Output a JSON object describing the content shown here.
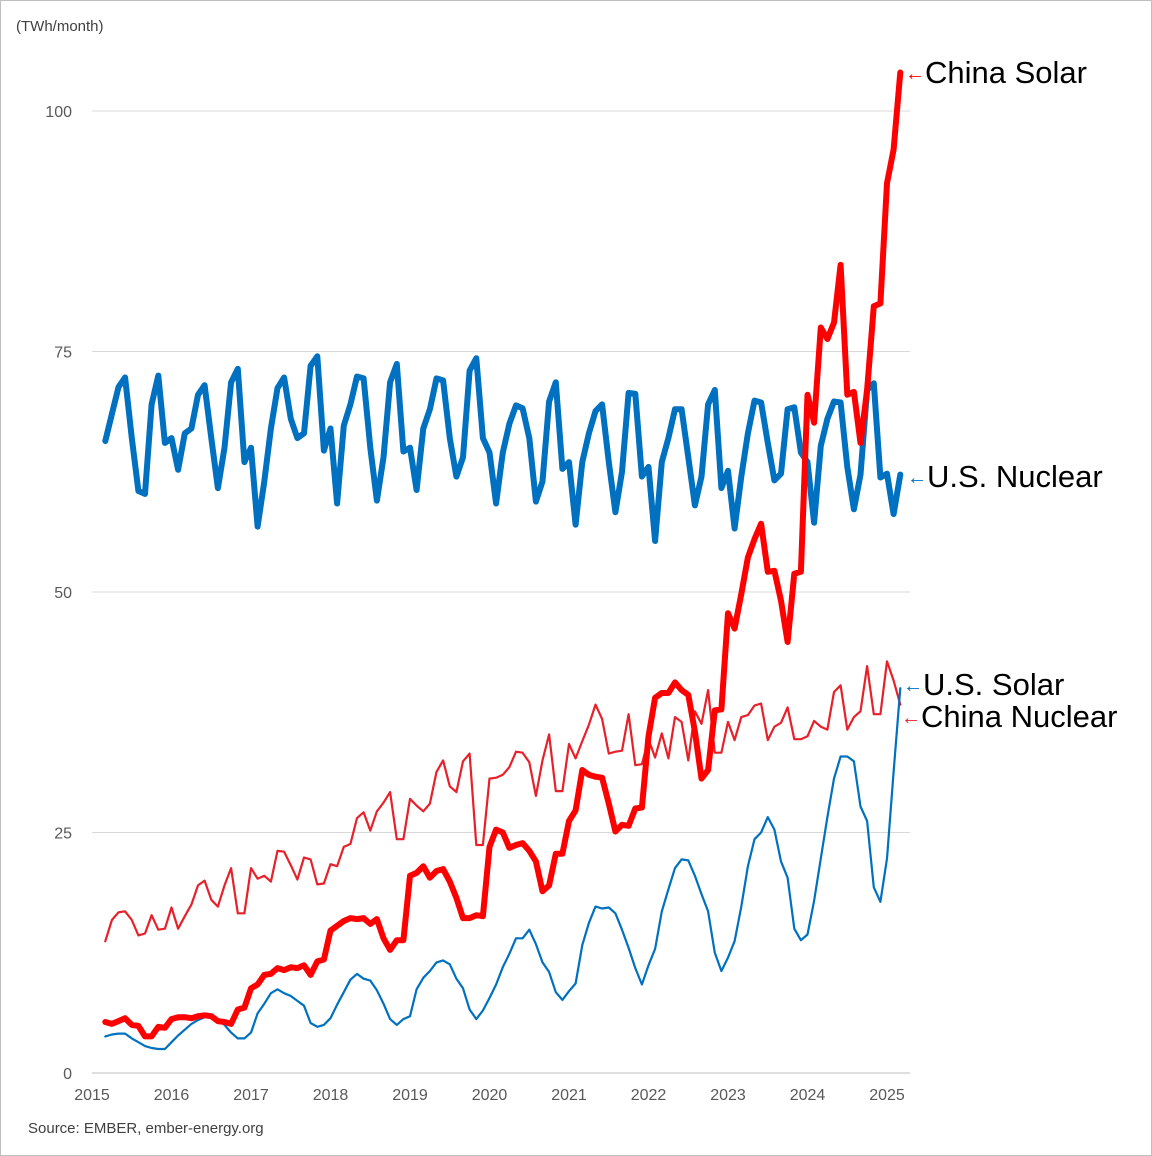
{
  "chart_data": {
    "type": "line",
    "unit_label": "(TWh/month)",
    "source": "Source: EMBER, ember-energy.org",
    "x_start": "2015-03",
    "x_step": "month",
    "xlim": [
      2015,
      2025.25
    ],
    "ylim": [
      0,
      105
    ],
    "y_ticks": [
      "0",
      "25",
      "50",
      "75",
      "100"
    ],
    "y_tick_values": [
      0,
      25,
      50,
      75,
      100
    ],
    "x_ticks": [
      "2015",
      "2016",
      "2017",
      "2018",
      "2019",
      "2020",
      "2021",
      "2022",
      "2023",
      "2024",
      "2025"
    ],
    "grid": true,
    "legend": "direct labels at line ends (right)",
    "arrow": "←",
    "series": [
      {
        "name": "China Solar",
        "color": "#FF0000",
        "weight": "thick",
        "values": [
          5.3,
          5.1,
          5.4,
          5.7,
          5,
          4.9,
          3.8,
          3.8,
          4.8,
          4.7,
          5.6,
          5.8,
          5.8,
          5.7,
          5.9,
          6,
          5.9,
          5.4,
          5.3,
          5.1,
          6.6,
          6.8,
          8.8,
          9.2,
          10.2,
          10.3,
          10.9,
          10.7,
          11,
          10.9,
          11.2,
          10.2,
          11.6,
          11.8,
          14.8,
          15.3,
          15.8,
          16.1,
          16,
          16.1,
          15.5,
          16,
          14,
          12.8,
          13.8,
          13.8,
          20.5,
          20.8,
          21.5,
          20.3,
          21,
          21.2,
          19.9,
          18.2,
          16.1,
          16.1,
          16.4,
          16.3,
          23.5,
          25.3,
          25,
          23.4,
          23.7,
          23.9,
          23.1,
          22,
          18.9,
          19.5,
          22.8,
          22.8,
          26.2,
          27.3,
          31.5,
          31,
          30.8,
          30.7,
          28,
          25.1,
          25.8,
          25.7,
          27.5,
          27.6,
          35,
          39,
          39.5,
          39.5,
          40.6,
          39.8,
          39.3,
          35.5,
          30.6,
          31.5,
          37.7,
          37.8,
          47.8,
          46.2,
          49.8,
          53.6,
          55.5,
          57.1,
          52.1,
          52.2,
          49.1,
          44.8,
          51.9,
          52.1,
          70.5,
          67.6,
          77.5,
          76.3,
          78,
          84,
          70.5,
          70.8,
          65.5,
          71,
          79.7,
          80,
          92.5,
          96,
          104
        ]
      },
      {
        "name": "U.S. Nuclear",
        "color": "#0070C0",
        "weight": "thick",
        "values": [
          65.7,
          68.5,
          71.3,
          72.3,
          66,
          60.5,
          60.2,
          69.5,
          72.5,
          65.5,
          66,
          62.7,
          66.5,
          67,
          70.5,
          71.5,
          66,
          60.8,
          65,
          71.8,
          73.2,
          63.5,
          65,
          56.8,
          61.5,
          67,
          71.2,
          72.3,
          68,
          66,
          66.5,
          73.5,
          74.5,
          64.7,
          67,
          59.2,
          67.3,
          69.5,
          72.4,
          72.2,
          65,
          59.5,
          64,
          71.8,
          73.7,
          64.6,
          65,
          60.6,
          67,
          69,
          72.2,
          72,
          66,
          62,
          64,
          73,
          74.3,
          66,
          64.5,
          59.2,
          64.5,
          67.5,
          69.4,
          69.1,
          66,
          59.4,
          61.5,
          69.8,
          71.8,
          62.8,
          63.5,
          57,
          63.5,
          66.5,
          68.8,
          69.5,
          63.5,
          58.3,
          62.5,
          70.7,
          70.6,
          62,
          63,
          55.3,
          63.5,
          66,
          69,
          69,
          64,
          59,
          62,
          69.5,
          71,
          60.8,
          62.6,
          56.6,
          62,
          66.5,
          69.9,
          69.7,
          65.5,
          61.6,
          62.3,
          69,
          69.2,
          64.5,
          63.5,
          57.2,
          65.2,
          68,
          69.8,
          69.7,
          63,
          58.6,
          62.2,
          71,
          71.7,
          61.9,
          62.3,
          58.1,
          62.2
        ]
      },
      {
        "name": "U.S. Solar",
        "color": "#0070C0",
        "weight": "thin",
        "values": [
          3.8,
          4,
          4.1,
          4.1,
          3.6,
          3.2,
          2.8,
          2.6,
          2.5,
          2.5,
          3.2,
          3.9,
          4.5,
          5.1,
          5.5,
          5.8,
          6,
          5.6,
          5,
          4.2,
          3.6,
          3.6,
          4.2,
          6.2,
          7.2,
          8.3,
          8.7,
          8.3,
          8,
          7.5,
          7,
          5.2,
          4.8,
          5,
          5.7,
          7.1,
          8.4,
          9.7,
          10.3,
          9.8,
          9.6,
          8.6,
          7.2,
          5.6,
          5,
          5.6,
          5.9,
          8.7,
          9.9,
          10.6,
          11.5,
          11.7,
          11.3,
          9.8,
          8.8,
          6.6,
          5.6,
          6.5,
          7.8,
          9.2,
          11,
          12.4,
          14,
          14,
          14.9,
          13.4,
          11.5,
          10.5,
          8.4,
          7.6,
          8.5,
          9.3,
          13.3,
          15.6,
          17.3,
          17.1,
          17.2,
          16.6,
          14.9,
          13,
          10.9,
          9.2,
          11.2,
          12.9,
          16.8,
          19.1,
          21.3,
          22.2,
          22.1,
          20.5,
          18.6,
          16.8,
          12.5,
          10.6,
          12,
          13.7,
          17.3,
          21.5,
          24.3,
          25,
          26.6,
          25.3,
          22,
          20.3,
          15,
          13.8,
          14.4,
          17.9,
          22.3,
          26.6,
          30.6,
          32.9,
          32.9,
          32.4,
          27.7,
          26.2,
          19.3,
          17.8,
          22.3,
          31.3,
          40
        ]
      },
      {
        "name": "China Nuclear",
        "color": "#E8202A",
        "weight": "thin",
        "values": [
          13.7,
          15.9,
          16.7,
          16.8,
          15.9,
          14.3,
          14.5,
          16.4,
          14.9,
          15,
          17.2,
          15,
          16.3,
          17.5,
          19.5,
          20,
          18,
          17.3,
          19.5,
          21.3,
          16.6,
          16.6,
          21.3,
          20.2,
          20.5,
          19.9,
          23.1,
          23,
          21.6,
          20.1,
          22.4,
          22.2,
          19.6,
          19.7,
          21.7,
          21.5,
          23.5,
          23.8,
          26.5,
          27.1,
          25.2,
          27.2,
          28.1,
          29.2,
          24.3,
          24.3,
          28.5,
          27.8,
          27.2,
          28,
          31.3,
          32.5,
          29.8,
          29.2,
          32.4,
          33.2,
          23.7,
          23.7,
          30.6,
          30.7,
          31,
          31.8,
          33.4,
          33.3,
          32.3,
          28.8,
          32.5,
          35.2,
          29.3,
          29.3,
          34.2,
          32.7,
          34.5,
          36.2,
          38.3,
          36.8,
          33.2,
          33.4,
          33.5,
          37.3,
          32,
          32.1,
          34.7,
          32.8,
          35.3,
          32.7,
          37,
          36.5,
          32.5,
          37.6,
          36.3,
          39.8,
          33.3,
          33.3,
          36.5,
          34.6,
          37,
          37.2,
          38.2,
          38.4,
          34.6,
          36,
          36.4,
          38,
          34.7,
          34.7,
          35,
          36.6,
          36,
          35.7,
          39.6,
          40.3,
          35.7,
          37,
          37.6,
          42.3,
          37.3,
          37.3,
          42.8,
          40.8,
          38.3
        ]
      }
    ]
  }
}
